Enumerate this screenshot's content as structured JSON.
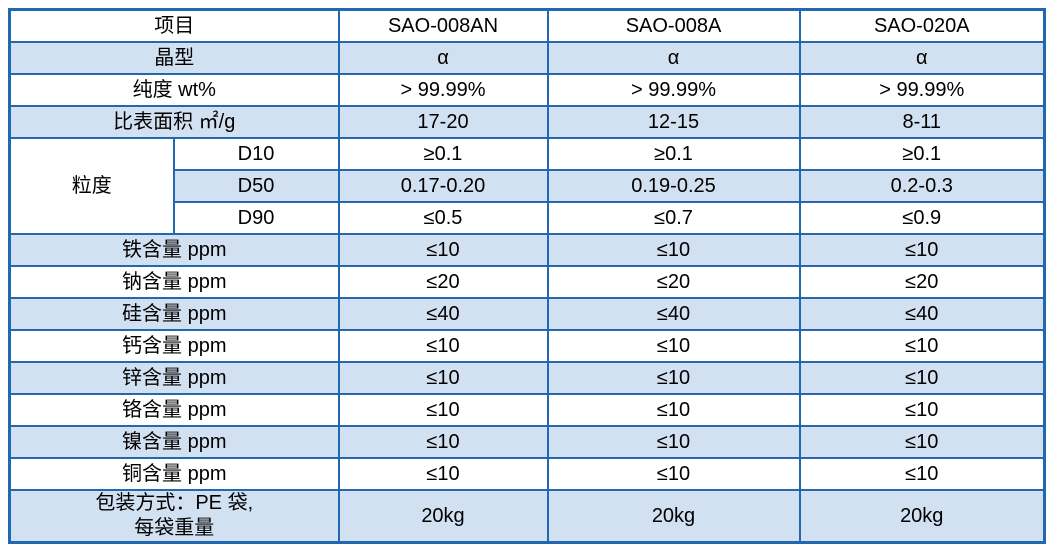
{
  "colors": {
    "border": "#2268B0",
    "row_shade": "#D2E1F1",
    "text": "#000000",
    "background": "#ffffff"
  },
  "header": {
    "item_label": "项目",
    "products": [
      "SAO-008AN",
      "SAO-008A",
      "SAO-020A"
    ]
  },
  "rows": {
    "crystal": {
      "label": "晶型",
      "v": [
        "α",
        "α",
        "α"
      ]
    },
    "purity": {
      "label": "纯度 wt%",
      "v": [
        "> 99.99%",
        "> 99.99%",
        "> 99.99%"
      ]
    },
    "ssa": {
      "label": "比表面积 ㎡/g",
      "v": [
        "17-20",
        "12-15",
        "8-11"
      ]
    },
    "particle_group_label": "粒度",
    "d10": {
      "label": "D10",
      "v": [
        "≥0.1",
        "≥0.1",
        "≥0.1"
      ]
    },
    "d50": {
      "label": "D50",
      "v": [
        "0.17-0.20",
        "0.19-0.25",
        "0.2-0.3"
      ]
    },
    "d90": {
      "label": "D90",
      "v": [
        "≤0.5",
        "≤0.7",
        "≤0.9"
      ]
    },
    "fe": {
      "label": "铁含量 ppm",
      "v": [
        "≤10",
        "≤10",
        "≤10"
      ]
    },
    "na": {
      "label": "钠含量 ppm",
      "v": [
        "≤20",
        "≤20",
        "≤20"
      ]
    },
    "si": {
      "label": "硅含量 ppm",
      "v": [
        "≤40",
        "≤40",
        "≤40"
      ]
    },
    "ca": {
      "label": "钙含量 ppm",
      "v": [
        "≤10",
        "≤10",
        "≤10"
      ]
    },
    "zn": {
      "label": "锌含量 ppm",
      "v": [
        "≤10",
        "≤10",
        "≤10"
      ]
    },
    "cr": {
      "label": "铬含量 ppm",
      "v": [
        "≤10",
        "≤10",
        "≤10"
      ]
    },
    "ni": {
      "label": "镍含量 ppm",
      "v": [
        "≤10",
        "≤10",
        "≤10"
      ]
    },
    "cu": {
      "label": "铜含量 ppm",
      "v": [
        "≤10",
        "≤10",
        "≤10"
      ]
    },
    "packaging": {
      "label_line1": "包装方式：PE 袋,",
      "label_line2": "每袋重量",
      "v": [
        "20kg",
        "20kg",
        "20kg"
      ]
    }
  }
}
